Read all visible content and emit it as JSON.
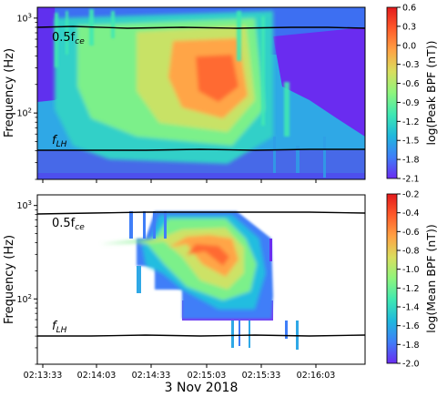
{
  "chart_data": [
    {
      "type": "heatmap",
      "panel": "top",
      "ylabel": "Frequency (Hz)",
      "yscale": "log",
      "ylim": [
        20,
        1300
      ],
      "y_ticks": [
        {
          "value": 100,
          "label": "10",
          "exp": "2"
        },
        {
          "value": 1000,
          "label": "10",
          "exp": "3"
        }
      ],
      "colorbar": {
        "label": "log(Peak BPF (nT))",
        "range": [
          -2.1,
          0.6
        ],
        "ticks": [
          "0.6",
          "0.3",
          "0.0",
          "-0.3",
          "-0.6",
          "-0.9",
          "-1.2",
          "-1.5",
          "-1.8",
          "-2.1"
        ],
        "colormap": [
          "#6a2cf0",
          "#3f7ef8",
          "#1fb8dd",
          "#3fe8b2",
          "#8ef57d",
          "#d9de5e",
          "#ffa244",
          "#ff5b2a",
          "#e31a1c"
        ]
      },
      "lines": [
        {
          "name": "0.5fce",
          "base": "0.5f",
          "sub": "ce",
          "y_start": 880,
          "y_end": 860
        },
        {
          "name": "fLH",
          "base": "f",
          "sub": "LH",
          "y_start": 38,
          "y_end": 40
        }
      ],
      "features": {
        "peak_time": "02:14:48",
        "peak_freq_hz": 230,
        "peak_value": 0.3
      }
    },
    {
      "type": "heatmap",
      "panel": "bottom",
      "ylabel": "Frequency (Hz)",
      "yscale": "log",
      "ylim": [
        20,
        1300
      ],
      "y_ticks": [
        {
          "value": 100,
          "label": "10",
          "exp": "2"
        },
        {
          "value": 1000,
          "label": "10",
          "exp": "3"
        }
      ],
      "xlabel": "3 Nov 2018",
      "x_ticks": [
        "02:13:33",
        "02:14:03",
        "02:14:33",
        "02:15:03",
        "02:15:33",
        "02:16:03"
      ],
      "colorbar": {
        "label": "log(Mean BPF (nT))",
        "range": [
          -2.0,
          -0.2
        ],
        "ticks": [
          "-0.2",
          "-0.4",
          "-0.6",
          "-0.8",
          "-1.0",
          "-1.2",
          "-1.4",
          "-1.6",
          "-1.8",
          "-2.0"
        ],
        "colormap": [
          "#6a2cf0",
          "#3f7ef8",
          "#1fb8dd",
          "#3fe8b2",
          "#8ef57d",
          "#d9de5e",
          "#ffa244",
          "#ff5b2a",
          "#e31a1c"
        ]
      },
      "lines": [
        {
          "name": "0.5fce",
          "base": "0.5f",
          "sub": "ce",
          "y_start": 880,
          "y_end": 860
        },
        {
          "name": "fLH",
          "base": "f",
          "sub": "LH",
          "y_start": 38,
          "y_end": 40
        }
      ],
      "features": {
        "peak_time": "02:14:48",
        "peak_freq_hz": 230,
        "peak_value": -0.4
      }
    }
  ]
}
